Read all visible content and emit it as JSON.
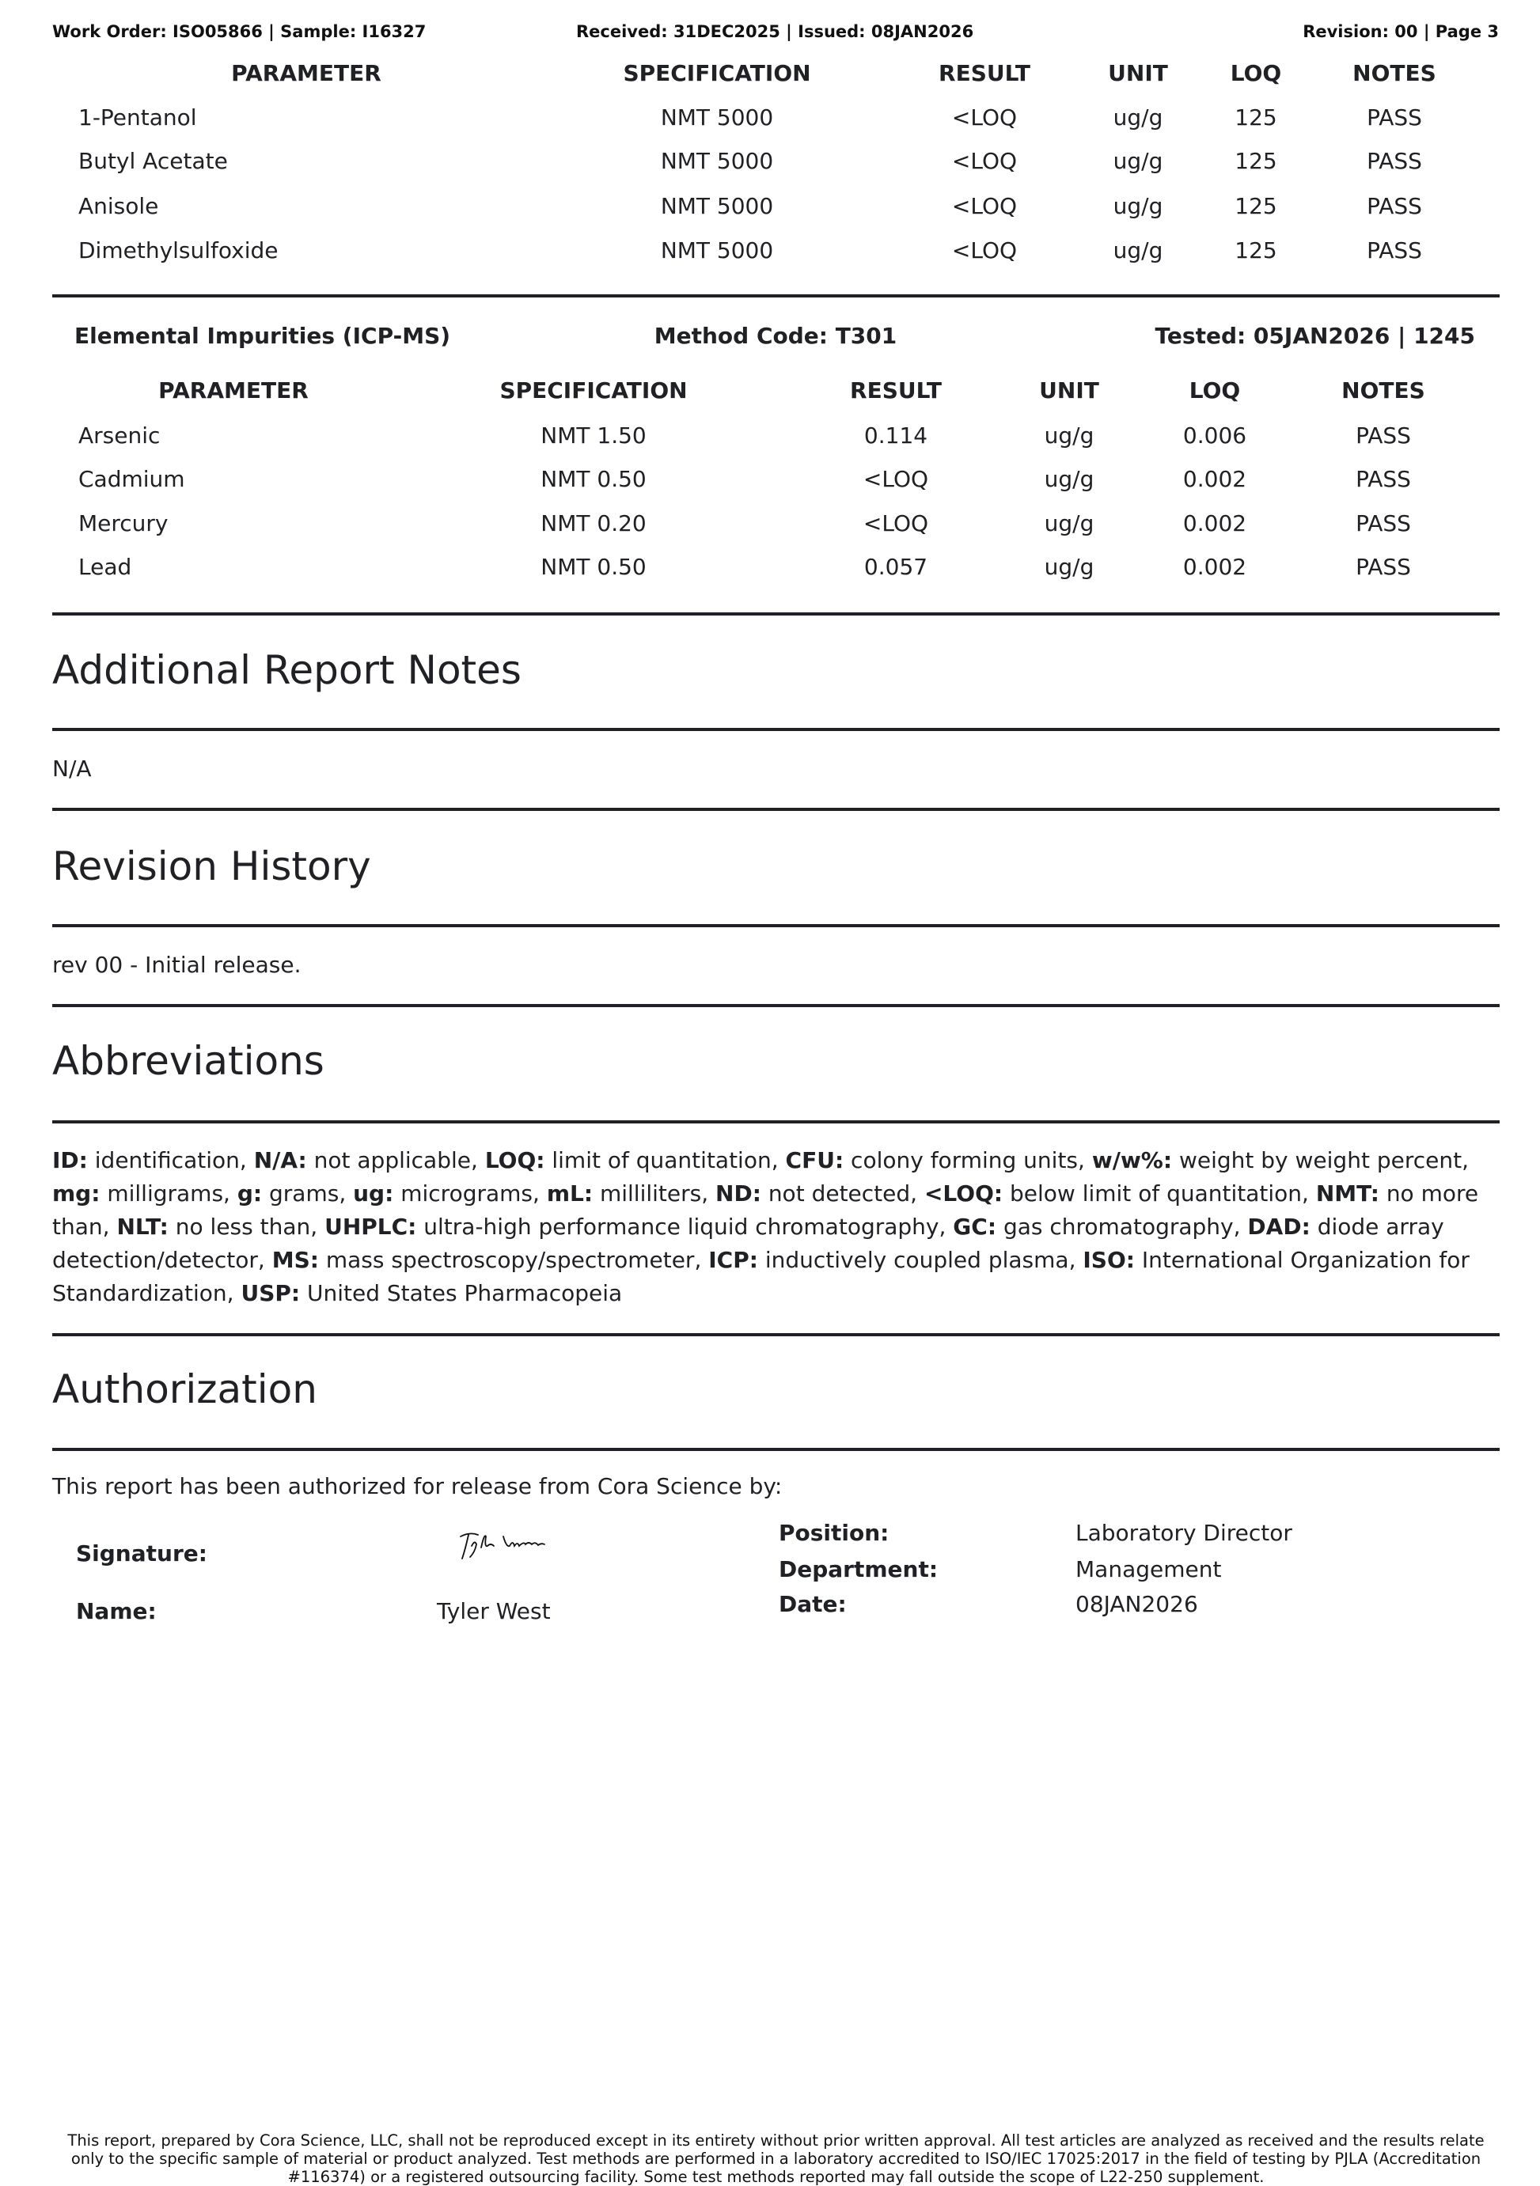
{
  "header": {
    "left": "Work Order: ISO05866 | Sample: I16327",
    "center": "Received: 31DEC2025 | Issued: 08JAN2026",
    "right": "Revision: 00 | Page 3"
  },
  "columns": [
    "PARAMETER",
    "SPECIFICATION",
    "RESULT",
    "UNIT",
    "LOQ",
    "NOTES"
  ],
  "solvents_table": {
    "rows": [
      [
        "1-Pentanol",
        "NMT 5000",
        "<LOQ",
        "ug/g",
        "125",
        "PASS"
      ],
      [
        "Butyl Acetate",
        "NMT 5000",
        "<LOQ",
        "ug/g",
        "125",
        "PASS"
      ],
      [
        "Anisole",
        "NMT 5000",
        "<LOQ",
        "ug/g",
        "125",
        "PASS"
      ],
      [
        "Dimethylsulfoxide",
        "NMT 5000",
        "<LOQ",
        "ug/g",
        "125",
        "PASS"
      ]
    ]
  },
  "elemental": {
    "title": "Elemental Impurities (ICP-MS)",
    "method": "Method Code: T301",
    "tested": "Tested: 05JAN2026 | 1245",
    "rows": [
      [
        "Arsenic",
        "NMT 1.50",
        "0.114",
        "ug/g",
        "0.006",
        "PASS"
      ],
      [
        "Cadmium",
        "NMT 0.50",
        "<LOQ",
        "ug/g",
        "0.002",
        "PASS"
      ],
      [
        "Mercury",
        "NMT 0.20",
        "<LOQ",
        "ug/g",
        "0.002",
        "PASS"
      ],
      [
        "Lead",
        "NMT 0.50",
        "0.057",
        "ug/g",
        "0.002",
        "PASS"
      ]
    ]
  },
  "notes": {
    "title": "Additional Report Notes",
    "text": "N/A"
  },
  "revision": {
    "title": "Revision History",
    "text": "rev 00 - Initial release."
  },
  "abbreviations": {
    "title": "Abbreviations",
    "items": [
      [
        "ID:",
        "identification"
      ],
      [
        "N/A:",
        "not applicable"
      ],
      [
        "LOQ:",
        "limit of quantitation"
      ],
      [
        "CFU:",
        "colony forming units"
      ],
      [
        "w/w%:",
        "weight by weight percent"
      ],
      [
        "mg:",
        "milligrams"
      ],
      [
        "g:",
        "grams"
      ],
      [
        "ug:",
        "micrograms"
      ],
      [
        "mL:",
        "milliliters"
      ],
      [
        "ND:",
        "not detected"
      ],
      [
        "<LOQ:",
        "below limit of quantitation"
      ],
      [
        "NMT:",
        "no more than"
      ],
      [
        "NLT:",
        "no less than"
      ],
      [
        "UHPLC:",
        "ultra-high performance liquid chromatography"
      ],
      [
        "GC:",
        "gas chromatography"
      ],
      [
        "DAD:",
        "diode array detection/detector"
      ],
      [
        "MS:",
        "mass spectroscopy/spectrometer"
      ],
      [
        "ICP:",
        "inductively coupled plasma"
      ],
      [
        "ISO:",
        "International Organization for Standardization"
      ],
      [
        "USP:",
        "United States Pharmacopeia"
      ]
    ]
  },
  "authorization": {
    "title": "Authorization",
    "intro": "This report has been authorized for release from Cora Science by:",
    "signature_label": "Signature:",
    "signature_text": "Tyler West",
    "name_label": "Name:",
    "name": "Tyler West",
    "position_label": "Position:",
    "position": "Laboratory Director",
    "department_label": "Department:",
    "department": "Management",
    "date_label": "Date:",
    "date": "08JAN2026"
  },
  "footer": "This report, prepared by Cora Science, LLC, shall not be reproduced except in its entirety without prior written approval. All test articles are analyzed as received and the results relate only to the specific sample of material or product analyzed. Test methods are performed in a laboratory accredited to ISO/IEC 17025:2017 in the field of testing by PJLA (Accreditation #116374) or a registered outsourcing facility. Some test methods reported may fall outside the scope of L22-250 supplement."
}
